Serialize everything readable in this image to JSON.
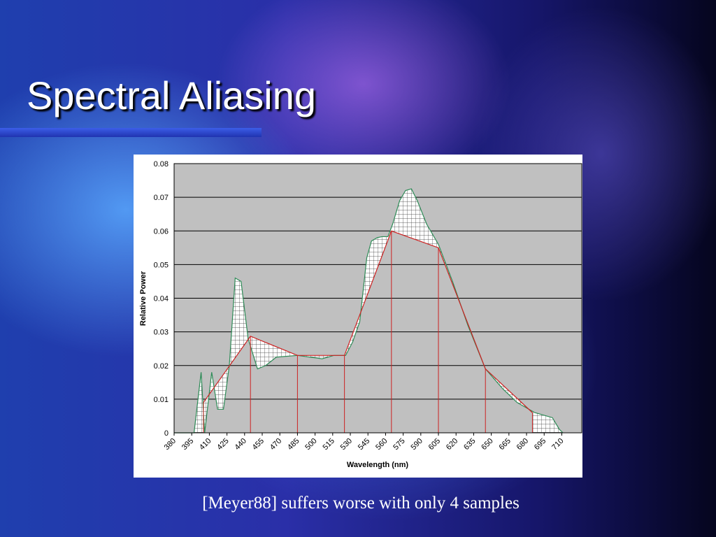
{
  "title": "Spectral Aliasing",
  "caption": "[Meyer88] suffers worse with only 4 samples",
  "chart_data": {
    "type": "line",
    "xlabel": "Wavelength (nm)",
    "ylabel": "Relative Power",
    "xlim": [
      380,
      727
    ],
    "ylim": [
      0,
      0.08
    ],
    "xticks": [
      380,
      395,
      410,
      425,
      440,
      455,
      470,
      485,
      500,
      515,
      530,
      545,
      560,
      575,
      590,
      605,
      620,
      635,
      650,
      665,
      680,
      695,
      710
    ],
    "yticks": [
      0,
      0.01,
      0.02,
      0.03,
      0.04,
      0.05,
      0.06,
      0.07,
      0.08
    ],
    "grid": true,
    "series": [
      {
        "color": "#2e8b57",
        "x": [
          380,
          397,
          403,
          406,
          412,
          417,
          422,
          427,
          432,
          437,
          443,
          451,
          458,
          467,
          485,
          506,
          516,
          526,
          532,
          538,
          544,
          548,
          553,
          557,
          562,
          566,
          572,
          577,
          582,
          587,
          595,
          605,
          617,
          630,
          645,
          660,
          672,
          687,
          702,
          708,
          711
        ],
        "values": [
          0,
          0,
          0.018,
          0,
          0.018,
          0.007,
          0.007,
          0.02,
          0.046,
          0.045,
          0.028,
          0.019,
          0.02,
          0.0225,
          0.023,
          0.022,
          0.023,
          0.023,
          0.027,
          0.033,
          0.052,
          0.057,
          0.058,
          0.0583,
          0.0583,
          0.062,
          0.069,
          0.072,
          0.0725,
          0.069,
          0.062,
          0.056,
          0.045,
          0.032,
          0.019,
          0.013,
          0.009,
          0.006,
          0.0045,
          0.001,
          0
        ]
      },
      {
        "color": "#cc2222",
        "x": [
          405,
          445,
          485,
          525,
          565,
          605,
          645,
          685
        ],
        "values": [
          0.009,
          0.0287,
          0.023,
          0.023,
          0.06,
          0.055,
          0.019,
          0.006
        ]
      }
    ]
  }
}
